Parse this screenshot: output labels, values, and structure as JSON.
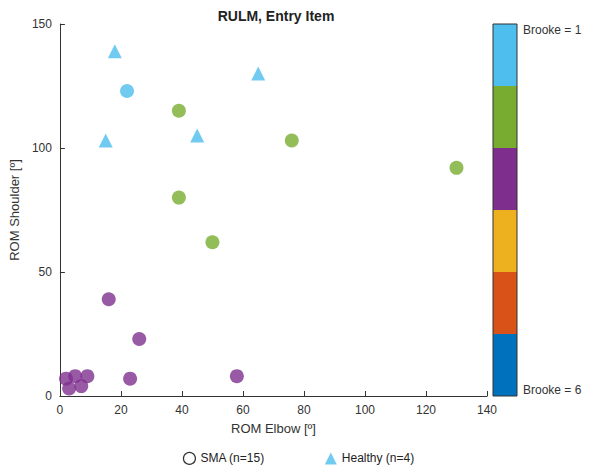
{
  "chart_data": {
    "type": "scatter",
    "title": "RULM, Entry Item",
    "x_label": "ROM Elbow [º]",
    "y_label": "ROM Shoulder [º]",
    "xlim": [
      0,
      140
    ],
    "xticks": [
      0,
      20,
      40,
      60,
      80,
      100,
      120,
      140
    ],
    "ylim": [
      0,
      150
    ],
    "yticks": [
      0,
      50,
      100,
      150
    ],
    "grid": false,
    "legend": "bottom",
    "series": [
      {
        "name": "SMA (n=15)",
        "marker": "circle",
        "x": [
          22,
          39,
          39,
          50,
          76,
          130,
          16,
          26,
          23,
          58,
          2,
          3,
          5,
          7,
          9
        ],
        "y": [
          123,
          115,
          80,
          62,
          103,
          92,
          39,
          23,
          7,
          8,
          7,
          3,
          8,
          4,
          8
        ],
        "brooke": [
          1,
          2,
          2,
          2,
          2,
          2,
          3,
          3,
          3,
          3,
          3,
          3,
          3,
          3,
          3
        ]
      },
      {
        "name": "Healthy (n=4)",
        "marker": "triangle",
        "color": "#4DBEEE",
        "x": [
          18,
          15,
          45,
          65
        ],
        "y": [
          139,
          103,
          105,
          130
        ]
      }
    ],
    "colorbar": {
      "range": [
        1,
        6
      ],
      "colors": [
        "#4DBEEE",
        "#77AC30",
        "#7E2F8E",
        "#EDB120",
        "#D95319",
        "#0072BD"
      ],
      "ticks": [
        {
          "value": 1,
          "label": "Brooke = 1"
        },
        {
          "value": 6,
          "label": "Brooke = 6"
        }
      ]
    }
  }
}
